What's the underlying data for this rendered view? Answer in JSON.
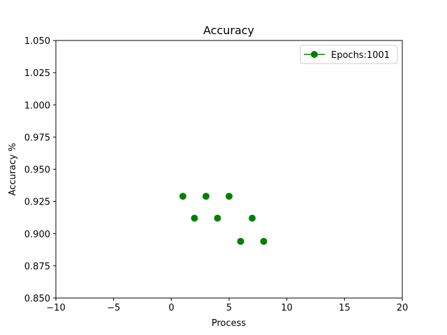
{
  "chart_data": {
    "type": "scatter",
    "title": "Accuracy",
    "xlabel": "Process",
    "ylabel": "Accuracy %",
    "xlim": [
      -10,
      20
    ],
    "ylim": [
      0.85,
      1.05
    ],
    "x_ticks": [
      -10,
      -5,
      0,
      5,
      10,
      15,
      20
    ],
    "x_tick_labels": [
      "−10",
      "−5",
      "0",
      "5",
      "10",
      "15",
      "20"
    ],
    "y_ticks": [
      0.85,
      0.875,
      0.9,
      0.925,
      0.95,
      0.975,
      1.0,
      1.025,
      1.05
    ],
    "y_tick_labels": [
      "0.850",
      "0.875",
      "0.900",
      "0.925",
      "0.950",
      "0.975",
      "1.000",
      "1.025",
      "1.050"
    ],
    "grid": false,
    "legend_position": "top-right",
    "series": [
      {
        "name": "Epochs:1001",
        "color": "#008000",
        "marker": "circle",
        "line_in_legend": true,
        "x": [
          1,
          2,
          3,
          4,
          5,
          6,
          7,
          8
        ],
        "y": [
          0.929,
          0.912,
          0.929,
          0.912,
          0.929,
          0.894,
          0.912,
          0.894
        ]
      }
    ]
  }
}
